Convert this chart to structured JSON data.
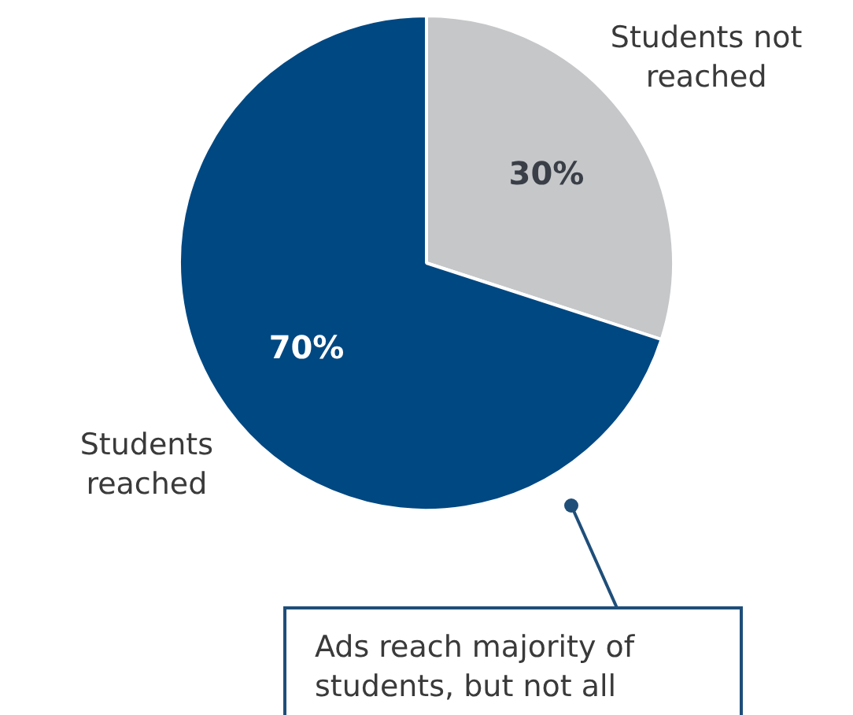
{
  "chart_data": {
    "type": "pie",
    "categories": [
      "Students not reached",
      "Students reached"
    ],
    "values": [
      30,
      70
    ],
    "colors": [
      "#c5c7c9",
      "#004882"
    ],
    "value_labels": [
      "30%",
      "70%"
    ],
    "annotations": [
      "Ads reach majority of students, but not all"
    ]
  }
}
